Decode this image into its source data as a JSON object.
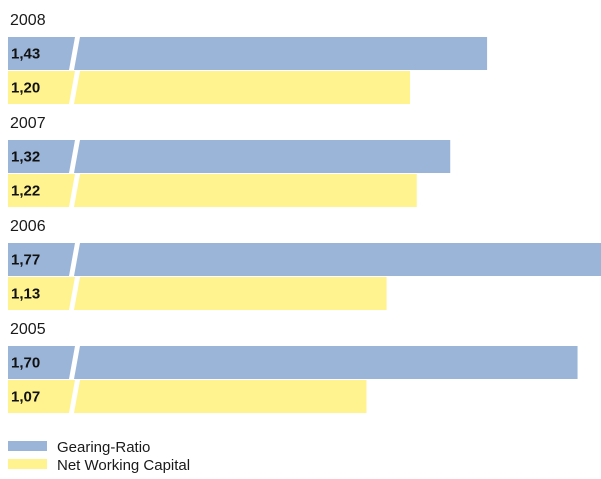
{
  "chart_data": {
    "type": "bar",
    "orientation": "horizontal",
    "categories": [
      "2008",
      "2007",
      "2006",
      "2005"
    ],
    "value_labels": {
      "Gearing-Ratio": [
        "1,43",
        "1,32",
        "1,77",
        "1,70"
      ],
      "Net Working Capital": [
        "1,20",
        "1,22",
        "1,13",
        "1,07"
      ]
    },
    "series": [
      {
        "name": "Gearing-Ratio",
        "values": [
          1.43,
          1.32,
          1.77,
          1.7
        ],
        "color": "#9bb5d8"
      },
      {
        "name": "Net Working Capital",
        "values": [
          1.2,
          1.22,
          1.13,
          1.07
        ],
        "color": "#fff38f"
      }
    ],
    "grid": false,
    "legend_position": "bottom-left",
    "title": "",
    "xlabel": "",
    "ylabel": ""
  }
}
